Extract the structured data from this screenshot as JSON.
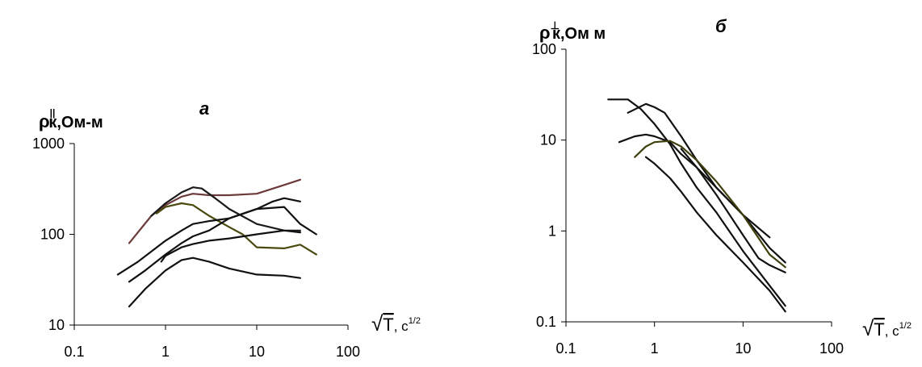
{
  "chart_data": [
    {
      "type": "line",
      "panel_label": "а",
      "ylabel_symbol": "ρ",
      "ylabel_superscript": "||",
      "ylabel_subscript": "к",
      "ylabel_units": ",Ом-м",
      "xlabel_radicand": "T",
      "xlabel_units": ", с",
      "xlabel_units_exponent": "1/2",
      "x_scale": "log",
      "y_scale": "log",
      "xlim": [
        0.1,
        100
      ],
      "ylim": [
        10,
        1000
      ],
      "x_ticks": [
        "0.1",
        "1",
        "10",
        "100"
      ],
      "y_ticks": [
        "10",
        "100",
        "1000"
      ],
      "x_tick_values": [
        0.1,
        1,
        10,
        100
      ],
      "y_tick_values": [
        10,
        100,
        1000
      ],
      "grid": false,
      "series": [
        {
          "color": "#6b3a3a",
          "x": [
            0.4,
            0.7,
            1.0,
            1.5,
            2.0,
            3.0,
            5.0,
            10.0,
            20.0,
            30.0
          ],
          "y": [
            80,
            160,
            210,
            260,
            280,
            270,
            270,
            280,
            350,
            400
          ]
        },
        {
          "color": "#1a1a1a",
          "x": [
            0.7,
            1.0,
            1.5,
            2.0,
            2.5,
            3.5,
            5.0,
            10.0,
            20.0,
            30.0
          ],
          "y": [
            160,
            220,
            290,
            330,
            320,
            250,
            190,
            130,
            110,
            110
          ]
        },
        {
          "color": "#4a4a10",
          "x": [
            0.8,
            1.0,
            1.5,
            2.0,
            3.0,
            5.0,
            7.0,
            10.0,
            20.0,
            30.0,
            45.0
          ],
          "y": [
            170,
            200,
            220,
            210,
            160,
            120,
            100,
            72,
            70,
            77,
            60
          ]
        },
        {
          "color": "#111111",
          "x": [
            0.3,
            0.5,
            1.0,
            1.5,
            2.0,
            3.0,
            5.0,
            10.0,
            15.0,
            20.0,
            30.0
          ],
          "y": [
            36,
            50,
            85,
            110,
            130,
            140,
            150,
            190,
            230,
            250,
            230
          ]
        },
        {
          "color": "#111111",
          "x": [
            0.4,
            0.6,
            1.0,
            1.5,
            2.0,
            3.0,
            5.0,
            10.0,
            20.0,
            30.0,
            45.0
          ],
          "y": [
            30,
            40,
            60,
            80,
            95,
            110,
            150,
            190,
            200,
            130,
            100
          ]
        },
        {
          "color": "#111111",
          "x": [
            0.9,
            1.0,
            1.5,
            2.0,
            3.0,
            5.0,
            10.0,
            20.0,
            30.0
          ],
          "y": [
            50,
            58,
            72,
            78,
            85,
            90,
            100,
            110,
            105
          ]
        },
        {
          "color": "#111111",
          "x": [
            0.4,
            0.6,
            1.0,
            1.5,
            2.0,
            3.0,
            5.0,
            10.0,
            20.0,
            30.0
          ],
          "y": [
            16,
            25,
            40,
            52,
            55,
            50,
            42,
            36,
            35,
            33
          ]
        }
      ]
    },
    {
      "type": "line",
      "panel_label": "б",
      "ylabel_symbol": "ρ",
      "ylabel_superscript": "⊥",
      "ylabel_subscript": "к",
      "ylabel_units": ",Ом м",
      "xlabel_radicand": "T",
      "xlabel_units": ", с",
      "xlabel_units_exponent": "1/2",
      "x_scale": "log",
      "y_scale": "log",
      "xlim": [
        0.1,
        100
      ],
      "ylim": [
        0.1,
        100
      ],
      "x_ticks": [
        "0.1",
        "1",
        "10",
        "100"
      ],
      "y_ticks": [
        "0.1",
        "1",
        "10",
        "100"
      ],
      "x_tick_values": [
        0.1,
        1,
        10,
        100
      ],
      "y_tick_values": [
        0.1,
        1,
        10,
        100
      ],
      "grid": false,
      "series": [
        {
          "color": "#111111",
          "x": [
            0.3,
            0.5,
            0.7,
            1.0,
            1.5,
            2.0,
            3.0,
            5.0,
            10.0,
            20.0,
            30.0
          ],
          "y": [
            28,
            28,
            22,
            15,
            9,
            5.5,
            3.0,
            1.6,
            0.6,
            0.25,
            0.15
          ]
        },
        {
          "color": "#111111",
          "x": [
            0.5,
            0.8,
            1.0,
            1.3,
            2.0,
            3.0,
            5.0,
            10.0,
            20.0,
            30.0
          ],
          "y": [
            20,
            25,
            23,
            20,
            11,
            6.0,
            3.0,
            1.5,
            0.65,
            0.45
          ]
        },
        {
          "color": "#111111",
          "x": [
            0.4,
            0.6,
            0.8,
            1.0,
            1.5,
            2.0,
            3.0,
            5.0,
            10.0,
            20.0
          ],
          "y": [
            9.5,
            11,
            11.5,
            11,
            9.5,
            7.0,
            5.0,
            3.0,
            1.5,
            0.85
          ]
        },
        {
          "color": "#3f3f0f",
          "x": [
            0.6,
            0.8,
            1.0,
            1.5,
            2.0,
            3.0,
            5.0,
            10.0,
            20.0,
            30.0
          ],
          "y": [
            6.5,
            8.5,
            9.5,
            9.8,
            8.5,
            6.0,
            3.5,
            1.5,
            0.55,
            0.4
          ]
        },
        {
          "color": "#111111",
          "x": [
            0.8,
            1.0,
            1.5,
            2.0,
            3.0,
            5.0,
            10.0,
            20.0,
            30.0
          ],
          "y": [
            6.5,
            5.5,
            3.8,
            2.7,
            1.6,
            0.9,
            0.45,
            0.22,
            0.13
          ]
        },
        {
          "color": "#111111",
          "x": [
            2.0,
            3.0,
            5.0,
            10.0,
            15.0,
            20.0,
            30.0
          ],
          "y": [
            8.0,
            5.0,
            2.5,
            0.9,
            0.5,
            0.42,
            0.35
          ]
        }
      ]
    }
  ]
}
